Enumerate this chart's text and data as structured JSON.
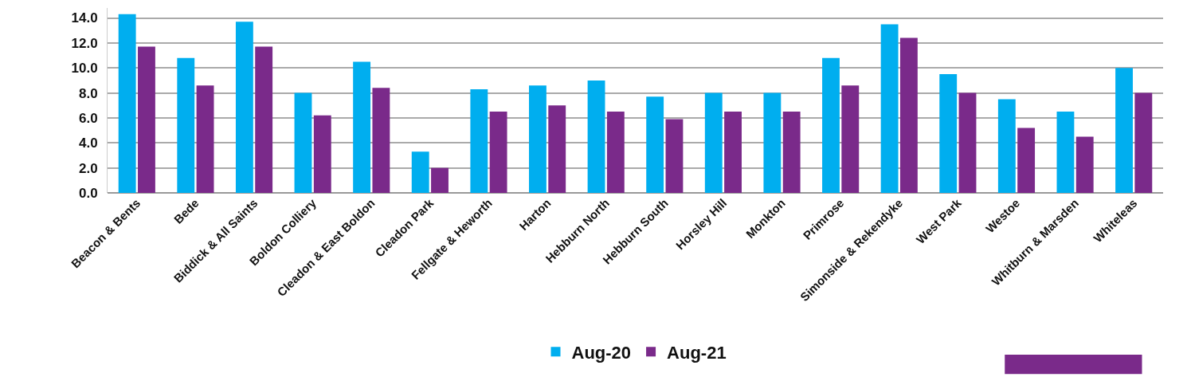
{
  "chart_data": {
    "type": "bar",
    "categories": [
      "Beacon & Bents",
      "Bede",
      "Biddick & All Saints",
      "Boldon Colliery",
      "Cleadon & East Boldon",
      "Cleadon Park",
      "Fellgate & Heworth",
      "Harton",
      "Hebburn North",
      "Hebburn South",
      "Horsley Hill",
      "Monkton",
      "Primrose",
      "Simonside & Rekendyke",
      "West Park",
      "Westoe",
      "Whitburn & Marsden",
      "Whiteleas"
    ],
    "series": [
      {
        "name": "Aug-20",
        "color": "#00aeef",
        "values": [
          14.3,
          10.8,
          13.7,
          8.0,
          10.5,
          3.3,
          8.3,
          8.6,
          9.0,
          7.7,
          8.0,
          8.0,
          10.8,
          13.5,
          9.5,
          7.5,
          6.5,
          10.0
        ]
      },
      {
        "name": "Aug-21",
        "color": "#7a2a8a",
        "values": [
          11.7,
          8.6,
          11.7,
          6.2,
          8.4,
          2.0,
          6.5,
          7.0,
          6.5,
          5.9,
          6.5,
          6.5,
          8.6,
          12.4,
          8.0,
          5.2,
          4.5,
          8.0
        ]
      }
    ],
    "yticks": [
      {
        "value": 0,
        "label": "0.0"
      },
      {
        "value": 2,
        "label": "2.0"
      },
      {
        "value": 4,
        "label": "4.0"
      },
      {
        "value": 6,
        "label": "6.0"
      },
      {
        "value": 8,
        "label": "8.0"
      },
      {
        "value": 10,
        "label": "10.0"
      },
      {
        "value": 12,
        "label": "12.0"
      },
      {
        "value": 14,
        "label": "14.0"
      }
    ],
    "ylim": [
      0,
      14.8
    ],
    "grid": "y",
    "legend": "bottom"
  }
}
